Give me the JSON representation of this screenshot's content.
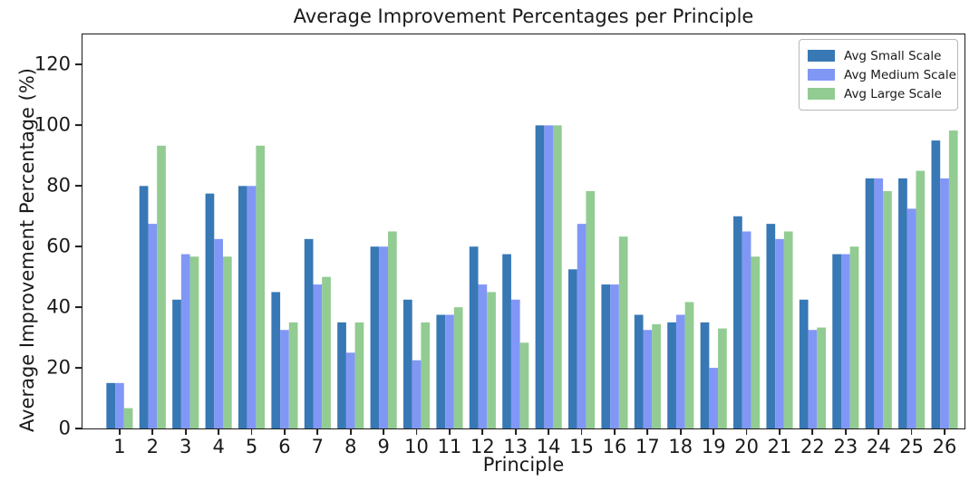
{
  "chart_data": {
    "type": "bar",
    "title": "Average Improvement Percentages per Principle",
    "xlabel": "Principle",
    "ylabel": "Average Improvement Percentage (%)",
    "categories": [
      "1",
      "2",
      "3",
      "4",
      "5",
      "6",
      "7",
      "8",
      "9",
      "10",
      "11",
      "12",
      "13",
      "14",
      "15",
      "16",
      "17",
      "18",
      "19",
      "20",
      "21",
      "22",
      "23",
      "24",
      "25",
      "26"
    ],
    "series": [
      {
        "name": "Avg Small Scale",
        "color": "#3778b5",
        "values": [
          15,
          80,
          42.5,
          77.5,
          80,
          45,
          62.5,
          35,
          60,
          42.5,
          37.5,
          60,
          57.5,
          100,
          52.5,
          47.5,
          37.5,
          35,
          35,
          70,
          67.5,
          42.5,
          57.5,
          82.5,
          82.5,
          95
        ]
      },
      {
        "name": "Avg Medium Scale",
        "color": "#8197f6",
        "values": [
          15,
          67.5,
          57.5,
          62.5,
          80,
          32.5,
          47.5,
          25,
          60,
          22.5,
          37.5,
          47.5,
          42.5,
          100,
          67.5,
          47.5,
          32.5,
          37.5,
          20,
          65,
          62.5,
          32.5,
          57.5,
          82.5,
          72.5,
          82.5
        ]
      },
      {
        "name": "Avg Large Scale",
        "color": "#92cc92",
        "values": [
          6.7,
          93.3,
          56.7,
          56.7,
          93.3,
          35,
          50,
          35,
          65,
          35,
          40,
          45,
          28.3,
          100,
          78.3,
          63.3,
          34.4,
          41.7,
          33,
          56.7,
          65,
          33.3,
          60,
          78.3,
          85,
          98.3
        ]
      }
    ],
    "ylim": [
      0,
      130
    ],
    "yticks": [
      0,
      20,
      40,
      60,
      80,
      100,
      120
    ],
    "legend_position": "upper right",
    "grid": false
  },
  "colors": {
    "axis": "#1a1a1a",
    "background": "#ffffff",
    "legend_border": "#b7b7b7"
  }
}
